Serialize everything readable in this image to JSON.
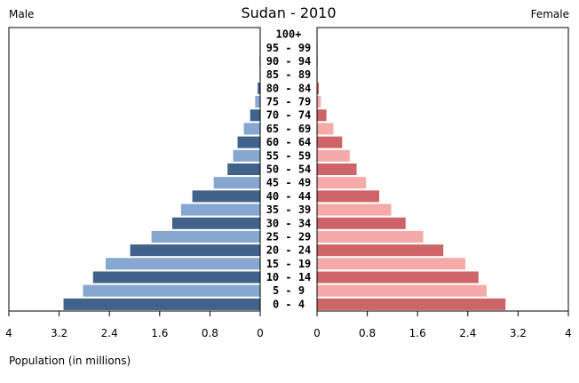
{
  "chart_data": {
    "type": "bar",
    "title": "Sudan - 2010",
    "left_label": "Male",
    "right_label": "Female",
    "xlabel": "Population (in millions)",
    "xlim": [
      0,
      4
    ],
    "x_ticks": [
      "0",
      "0.8",
      "1.6",
      "2.4",
      "3.2",
      "4"
    ],
    "categories": [
      "100+",
      "95 - 99",
      "90 - 94",
      "85 - 89",
      "80 - 84",
      "75 - 79",
      "70 - 74",
      "65 - 69",
      "60 - 64",
      "55 - 59",
      "50 - 54",
      "45 - 49",
      "40 - 44",
      "35 - 39",
      "30 - 34",
      "25 - 29",
      "20 - 24",
      "15 - 19",
      "10 - 14",
      "5 - 9",
      "0 - 4"
    ],
    "series": [
      {
        "name": "Male",
        "values": [
          0.0,
          0.01,
          0.01,
          0.01,
          0.04,
          0.08,
          0.16,
          0.26,
          0.36,
          0.43,
          0.52,
          0.74,
          1.08,
          1.26,
          1.4,
          1.73,
          2.07,
          2.46,
          2.66,
          2.82,
          3.13
        ],
        "colors": [
          "#41628a",
          "#85a7d0"
        ]
      },
      {
        "name": "Female",
        "values": [
          0.0,
          0.01,
          0.01,
          0.01,
          0.03,
          0.06,
          0.15,
          0.26,
          0.4,
          0.52,
          0.63,
          0.78,
          0.99,
          1.18,
          1.41,
          1.69,
          2.01,
          2.36,
          2.57,
          2.7,
          3.0
        ],
        "colors": [
          "#cd6568",
          "#f5a9a9"
        ]
      }
    ]
  }
}
